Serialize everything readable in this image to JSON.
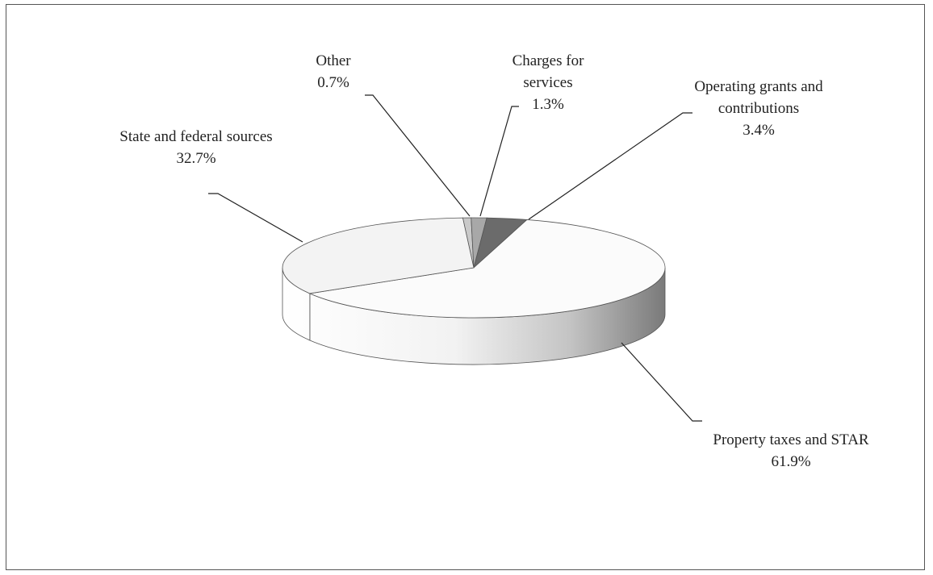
{
  "chart_data": {
    "type": "pie",
    "categories": [
      "Other",
      "Charges for services",
      "Operating grants and contributions",
      "Property taxes and STAR",
      "State and federal sources"
    ],
    "values": [
      0.7,
      1.3,
      3.4,
      61.9,
      32.7
    ],
    "value_labels": [
      "0.7%",
      "1.3%",
      "3.4%",
      "61.9%",
      "32.7%"
    ],
    "colors": [
      "#c9c9c9",
      "#a8a8a8",
      "#6b6b6b",
      "#fbfbfb",
      "#f3f3f3"
    ]
  }
}
